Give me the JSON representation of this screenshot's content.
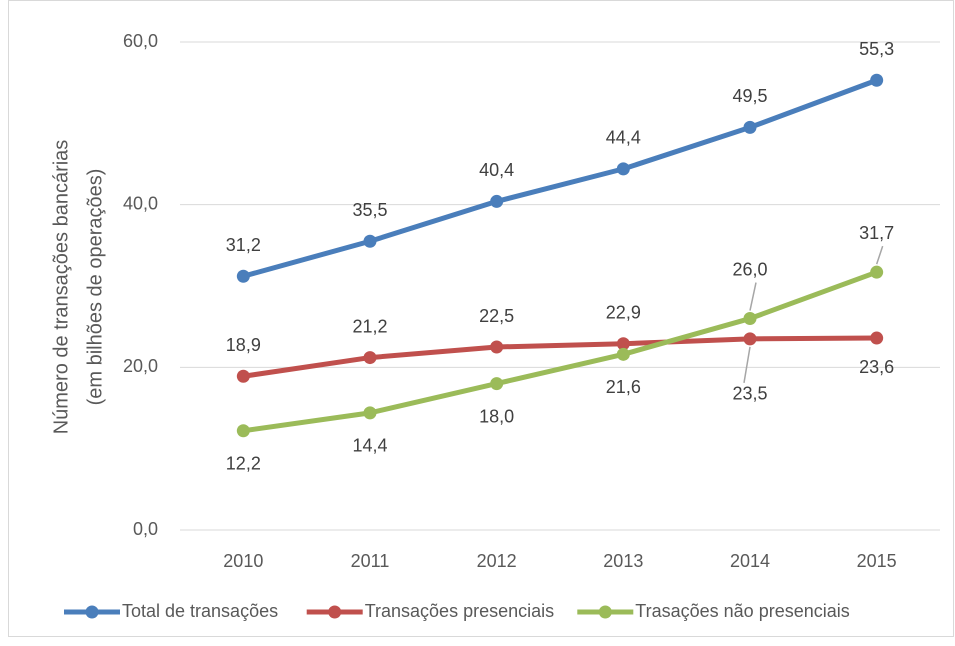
{
  "chart_data": {
    "type": "line",
    "ylabel": [
      "Número de transações bancárias",
      "(em bilhões de operações)"
    ],
    "categories": [
      "2010",
      "2011",
      "2012",
      "2013",
      "2014",
      "2015"
    ],
    "series": [
      {
        "name": "Total de transações",
        "color": "#4a7ebb",
        "values": [
          31.2,
          35.5,
          40.4,
          44.4,
          49.5,
          55.3
        ],
        "value_labels": [
          "31,2",
          "35,5",
          "40,4",
          "44,4",
          "49,5",
          "55,3"
        ]
      },
      {
        "name": "Transações presenciais",
        "color": "#c0504d",
        "values": [
          18.9,
          21.2,
          22.5,
          22.9,
          23.5,
          23.6
        ],
        "value_labels": [
          "18,9",
          "21,2",
          "22,5",
          "22,9",
          "23,5",
          "23,6"
        ]
      },
      {
        "name": "Trasações não presenciais",
        "color": "#9bbb59",
        "values": [
          12.2,
          14.4,
          18.0,
          21.6,
          26.0,
          31.7
        ],
        "value_labels": [
          "12,2",
          "14,4",
          "18,0",
          "21,6",
          "26,0",
          "31,7"
        ]
      }
    ],
    "ylim": [
      0,
      60
    ],
    "yticks": [
      {
        "value": 0,
        "label": "0,0"
      },
      {
        "value": 20,
        "label": "20,0"
      },
      {
        "value": 40,
        "label": "40,0"
      },
      {
        "value": 60,
        "label": "60,0"
      }
    ],
    "grid": true,
    "legend": "bottom"
  }
}
